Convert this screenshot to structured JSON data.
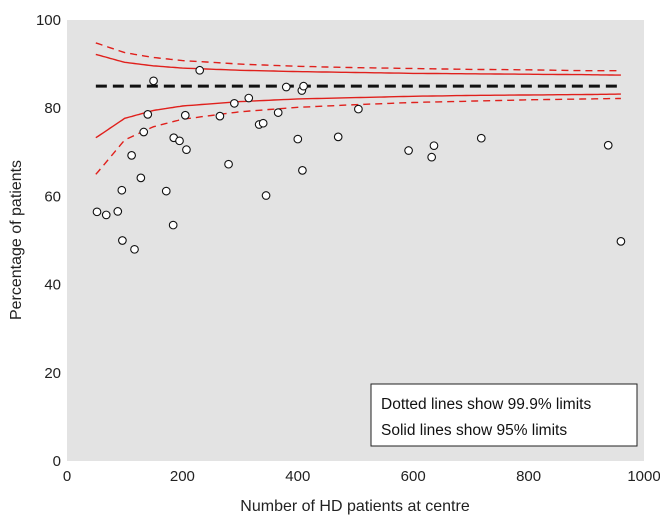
{
  "chart_data": {
    "type": "scatter",
    "title": "",
    "xlabel": "Number of HD patients at centre",
    "ylabel": "Percentage of patients",
    "xlim": [
      0,
      1000
    ],
    "ylim": [
      0,
      100
    ],
    "xticks": [
      0,
      200,
      400,
      600,
      800,
      1000
    ],
    "yticks": [
      0,
      20,
      40,
      60,
      80,
      100
    ],
    "grid": false,
    "background_color": "#e3e3e3",
    "target_line": {
      "y": 85,
      "style": "dashed",
      "color": "#111111"
    },
    "funnel_limits": {
      "color": "#e0201c",
      "center": 85,
      "x_range": [
        50,
        960
      ],
      "limits_95_solid": {
        "x": [
          50,
          100,
          150,
          200,
          300,
          400,
          500,
          600,
          700,
          800,
          900,
          960
        ],
        "upper": [
          92.2,
          90.4,
          89.6,
          89.1,
          88.6,
          88.3,
          88.1,
          87.9,
          87.8,
          87.7,
          87.6,
          87.5
        ],
        "lower": [
          73.3,
          77.7,
          79.5,
          80.5,
          81.5,
          82.1,
          82.4,
          82.7,
          82.9,
          83.0,
          83.1,
          83.2
        ]
      },
      "limits_999_dotted": {
        "x": [
          50,
          100,
          150,
          200,
          300,
          400,
          500,
          600,
          700,
          800,
          900,
          960
        ],
        "upper": [
          94.8,
          92.6,
          91.5,
          90.8,
          90.0,
          89.5,
          89.2,
          89.0,
          88.8,
          88.7,
          88.5,
          88.5
        ],
        "lower": [
          65.0,
          72.8,
          75.8,
          77.5,
          79.2,
          80.2,
          80.8,
          81.3,
          81.6,
          81.9,
          82.1,
          82.2
        ]
      }
    },
    "points": [
      {
        "x": 52,
        "y": 56.5
      },
      {
        "x": 68,
        "y": 55.8
      },
      {
        "x": 88,
        "y": 56.6
      },
      {
        "x": 95,
        "y": 61.4
      },
      {
        "x": 96,
        "y": 50.0
      },
      {
        "x": 112,
        "y": 69.3
      },
      {
        "x": 117,
        "y": 48.0
      },
      {
        "x": 128,
        "y": 64.2
      },
      {
        "x": 133,
        "y": 74.6
      },
      {
        "x": 140,
        "y": 78.6
      },
      {
        "x": 150,
        "y": 86.2
      },
      {
        "x": 172,
        "y": 61.2
      },
      {
        "x": 184,
        "y": 53.5
      },
      {
        "x": 185,
        "y": 73.3
      },
      {
        "x": 195,
        "y": 72.6
      },
      {
        "x": 205,
        "y": 78.4
      },
      {
        "x": 207,
        "y": 70.6
      },
      {
        "x": 230,
        "y": 88.6
      },
      {
        "x": 265,
        "y": 78.2
      },
      {
        "x": 280,
        "y": 67.3
      },
      {
        "x": 290,
        "y": 81.1
      },
      {
        "x": 315,
        "y": 82.3
      },
      {
        "x": 333,
        "y": 76.3
      },
      {
        "x": 340,
        "y": 76.6
      },
      {
        "x": 345,
        "y": 60.2
      },
      {
        "x": 366,
        "y": 79.0
      },
      {
        "x": 380,
        "y": 84.8
      },
      {
        "x": 400,
        "y": 73.0
      },
      {
        "x": 407,
        "y": 84.0
      },
      {
        "x": 408,
        "y": 65.9
      },
      {
        "x": 410,
        "y": 85.0
      },
      {
        "x": 470,
        "y": 73.5
      },
      {
        "x": 505,
        "y": 79.8
      },
      {
        "x": 592,
        "y": 70.4
      },
      {
        "x": 632,
        "y": 68.9
      },
      {
        "x": 636,
        "y": 71.5
      },
      {
        "x": 718,
        "y": 73.2
      },
      {
        "x": 938,
        "y": 71.6
      },
      {
        "x": 960,
        "y": 49.8
      }
    ]
  },
  "legend": {
    "line1": "Dotted lines show 99.9% limits",
    "line2": "Solid lines show 95% limits"
  }
}
